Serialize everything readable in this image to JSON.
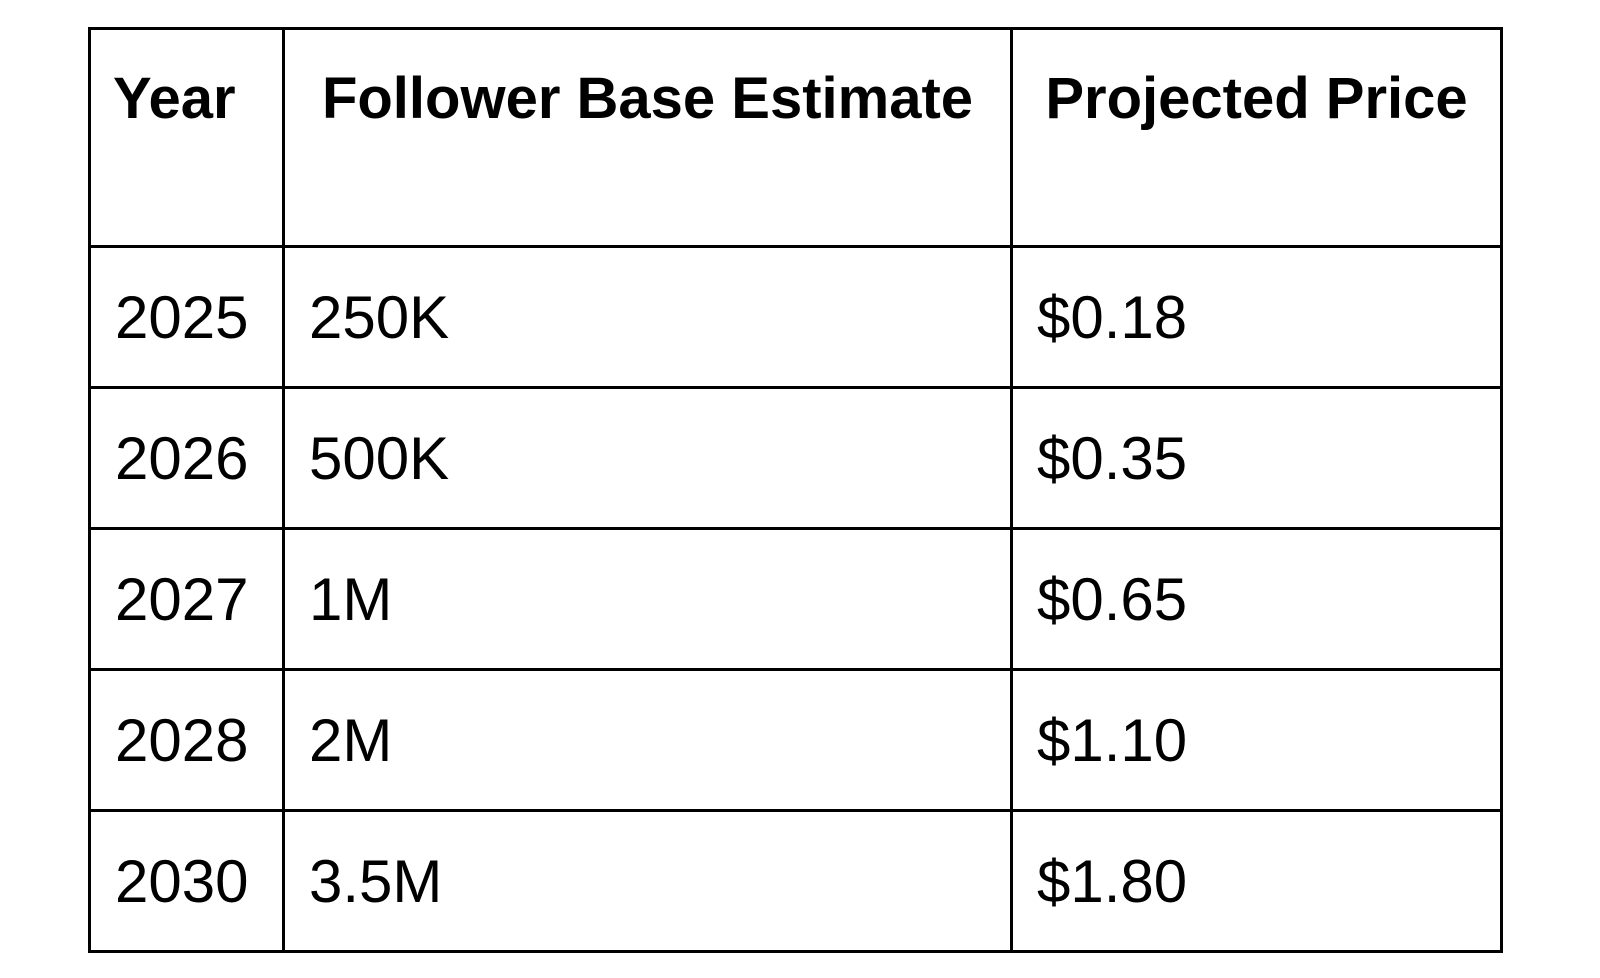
{
  "table": {
    "headers": {
      "year": "Year",
      "followers": "Follower Base Estimate",
      "price": "Projected Price"
    },
    "rows": [
      {
        "year": "2025",
        "followers": "250K",
        "price": "$0.18"
      },
      {
        "year": "2026",
        "followers": "500K",
        "price": "$0.35"
      },
      {
        "year": "2027",
        "followers": "1M",
        "price": "$0.65"
      },
      {
        "year": "2028",
        "followers": "2M",
        "price": "$1.10"
      },
      {
        "year": "2030",
        "followers": "3.5M",
        "price": "$1.80"
      }
    ]
  }
}
